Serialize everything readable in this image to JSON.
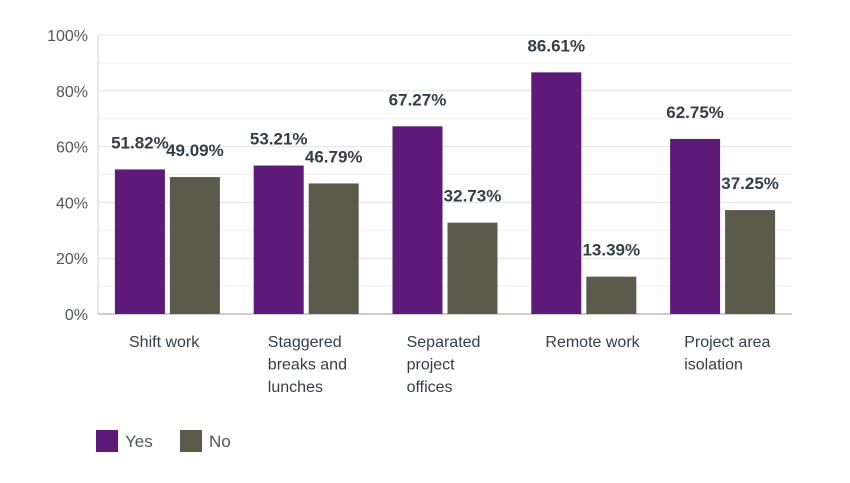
{
  "chart_data": {
    "type": "bar",
    "categories": [
      [
        "Shift work"
      ],
      [
        "Staggered",
        "breaks and",
        "lunches"
      ],
      [
        "Separated",
        "project",
        "offices"
      ],
      [
        "Remote work"
      ],
      [
        "Project area",
        "isolation"
      ]
    ],
    "series": [
      {
        "name": "Yes",
        "color": "#5e1a78",
        "values": [
          51.82,
          53.21,
          67.27,
          86.61,
          62.75
        ],
        "labels": [
          "51.82%",
          "53.21%",
          "67.27%",
          "86.61%",
          "62.75%"
        ]
      },
      {
        "name": "No",
        "color": "#5b5a4b",
        "values": [
          49.09,
          46.79,
          32.73,
          13.39,
          37.25
        ],
        "labels": [
          "49.09%",
          "46.79%",
          "32.73%",
          "13.39%",
          "37.25%"
        ]
      }
    ],
    "y_ticks": [
      "0%",
      "20%",
      "40%",
      "60%",
      "80%",
      "100%"
    ],
    "ylim": [
      0,
      100
    ],
    "grid": true,
    "legend_position": "bottom-left"
  }
}
